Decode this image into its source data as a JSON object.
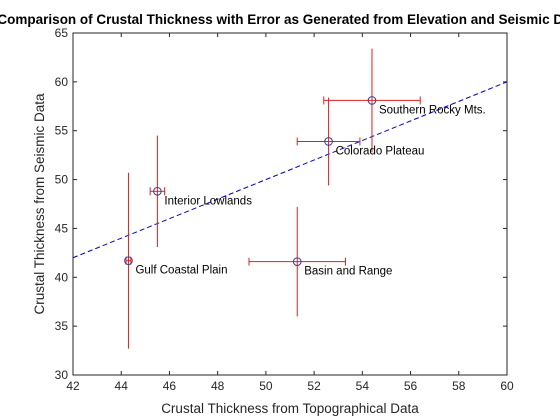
{
  "chart_data": {
    "type": "scatter",
    "title": "Comparison of Crustal Thickness with Error as Generated from Elevation and Seismic Data",
    "xlabel": "Crustal Thickness from Topographical Data",
    "ylabel": "Crustal Thickness from Seismic Data",
    "xlim": [
      42,
      60
    ],
    "ylim": [
      30,
      65
    ],
    "xticks": [
      42,
      44,
      46,
      48,
      50,
      52,
      54,
      56,
      58,
      60
    ],
    "yticks": [
      30,
      35,
      40,
      45,
      50,
      55,
      60,
      65
    ],
    "grid": false,
    "legend": "none",
    "marker_color": "#3a3a8c",
    "errorbar_color": "#e02020",
    "fit_line_color": "#0000cc",
    "points": [
      {
        "label": "Southern Rocky Mts.",
        "x": 54.4,
        "y": 58.1,
        "xerr": 2.0,
        "yerr": 5.3
      },
      {
        "label": "Colorado Plateau",
        "x": 52.6,
        "y": 53.9,
        "xerr": 1.3,
        "yerr": 4.5
      },
      {
        "label": "Interior Lowlands",
        "x": 45.5,
        "y": 48.8,
        "xerr": 0.3,
        "yerr": 5.7
      },
      {
        "label": "Gulf Coastal Plain",
        "x": 44.3,
        "y": 41.7,
        "xerr": 0.1,
        "yerr": 9.0
      },
      {
        "label": "Basin and Range",
        "x": 51.3,
        "y": 41.6,
        "xerr": 2.0,
        "yerr": 5.6
      }
    ],
    "fit_line": {
      "x": [
        42,
        60
      ],
      "y": [
        42.0,
        60.0
      ],
      "style": "dashed"
    }
  }
}
